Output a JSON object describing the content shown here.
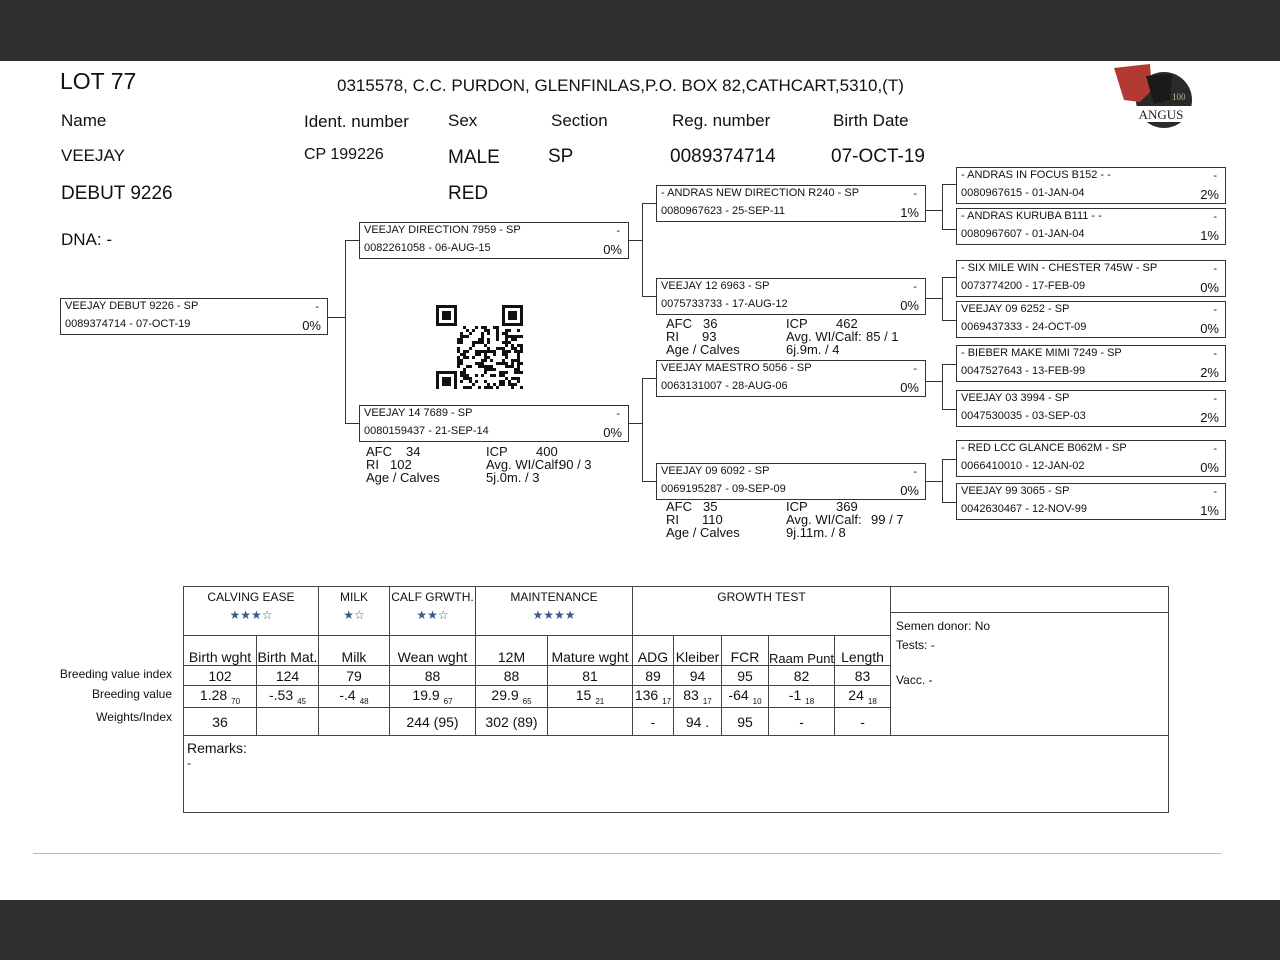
{
  "header": {
    "lot": "LOT 77",
    "breeder": "0315578, C.C. PURDON, GLENFINLAS,P.O. BOX 82,CATHCART,5310,(T)",
    "labels": {
      "name": "Name",
      "ident": "Ident. number",
      "sex": "Sex",
      "section": "Section",
      "reg": "Reg. number",
      "birth": "Birth Date"
    },
    "values": {
      "name1": "VEEJAY",
      "name2": "DEBUT 9226",
      "ident": "CP  199226",
      "sex": "MALE",
      "color": "RED",
      "section": "SP",
      "reg": "0089374714",
      "birth": "07-OCT-19"
    },
    "dna": "DNA: -",
    "logo_text": "ANGUS"
  },
  "pedigree": {
    "animal": {
      "name": "VEEJAY DEBUT 9226 - SP",
      "dash": "-",
      "reg": "0089374714 -  07-OCT-19",
      "pct": "0%"
    },
    "sire": {
      "name": "VEEJAY DIRECTION 7959 - SP",
      "dash": "-",
      "reg": "0082261058 - 06-AUG-15",
      "pct": "0%"
    },
    "dam": {
      "name": "VEEJAY 14 7689 - SP",
      "dash": "-",
      "reg": "0080159437 - 21-SEP-14",
      "pct": "0%",
      "stats": {
        "afc_l": "AFC",
        "afc": "34",
        "ri_l": "RI",
        "ri": "102",
        "age_l": "Age / Calves",
        "icp_l": "ICP",
        "icp": "400",
        "avg_l": "Avg. WI/Calf:",
        "avg": "90 / 3",
        "age": "5j.0m. / 3"
      }
    },
    "ss": {
      "name": "- ANDRAS NEW DIRECTION R240 - SP",
      "dash": "-",
      "reg": "0080967623 - 25-SEP-11",
      "pct": "1%"
    },
    "sd": {
      "name": "VEEJAY 12 6963 - SP",
      "dash": "-",
      "reg": "0075733733 - 17-AUG-12",
      "pct": "0%",
      "stats": {
        "afc_l": "AFC",
        "afc": "36",
        "ri_l": "RI",
        "ri": "93",
        "age_l": "Age / Calves",
        "icp_l": "ICP",
        "icp": "462",
        "avg_l": "Avg. WI/Calf:",
        "avg": "85 / 1",
        "age": "6j.9m. / 4"
      }
    },
    "ds": {
      "name": "VEEJAY MAESTRO 5056 - SP",
      "dash": "-",
      "reg": "0063131007 - 28-AUG-06",
      "pct": "0%"
    },
    "dd": {
      "name": "VEEJAY 09 6092 - SP",
      "dash": "-",
      "reg": "0069195287 - 09-SEP-09",
      "pct": "0%",
      "stats": {
        "afc_l": "AFC",
        "afc": "35",
        "ri_l": "RI",
        "ri": "110",
        "age_l": "Age / Calves",
        "icp_l": "ICP",
        "icp": "369",
        "avg_l": "Avg. WI/Calf:",
        "avg": "99 / 7",
        "age": "9j.11m. / 8"
      }
    },
    "ggp": [
      {
        "name": "- ANDRAS IN FOCUS B152 - -",
        "dash": "-",
        "reg": "0080967615 - 01-JAN-04",
        "pct": "2%"
      },
      {
        "name": "- ANDRAS KURUBA B111 - -",
        "dash": "-",
        "reg": "0080967607 - 01-JAN-04",
        "pct": "1%"
      },
      {
        "name": "- SIX MILE WIN - CHESTER 745W - SP",
        "dash": "-",
        "reg": "0073774200 - 17-FEB-09",
        "pct": "0%"
      },
      {
        "name": "VEEJAY 09 6252 - SP",
        "dash": "-",
        "reg": "0069437333 - 24-OCT-09",
        "pct": "0%"
      },
      {
        "name": "- BIEBER MAKE MIMI 7249 - SP",
        "dash": "-",
        "reg": "0047527643 - 13-FEB-99",
        "pct": "2%"
      },
      {
        "name": "VEEJAY 03 3994 - SP",
        "dash": "-",
        "reg": "0047530035 - 03-SEP-03",
        "pct": "2%"
      },
      {
        "name": "- RED LCC GLANCE B062M - SP",
        "dash": "-",
        "reg": "0066410010 - 12-JAN-02",
        "pct": "0%"
      },
      {
        "name": "VEEJAY 99 3065 - SP",
        "dash": "-",
        "reg": "0042630467 - 12-NOV-99",
        "pct": "1%"
      }
    ]
  },
  "table": {
    "groups": [
      {
        "label": "CALVING EASE",
        "stars": "★★★☆"
      },
      {
        "label": "MILK",
        "stars": "★☆"
      },
      {
        "label": "CALF GRWTH.",
        "stars": "★★☆"
      },
      {
        "label": "MAINTENANCE",
        "stars": "★★★★"
      },
      {
        "label": "GROWTH TEST",
        "stars": ""
      }
    ],
    "star_color": "#3a5a8c",
    "row_labels": [
      "Breeding value index",
      "Breeding value",
      "Weights/Index"
    ],
    "columns": [
      "Birth wght",
      "Birth Mat.",
      "Milk",
      "Wean wght",
      "12M",
      "Mature wght",
      "ADG",
      "Kleiber",
      "FCR",
      "Raam Punt",
      "Length"
    ],
    "index": [
      "102",
      "124",
      "79",
      "88",
      "88",
      "81",
      "89",
      "94",
      "95",
      "82",
      "83"
    ],
    "bv": [
      [
        "1.28",
        "70"
      ],
      [
        "-.53",
        "45"
      ],
      [
        "-.4",
        "48"
      ],
      [
        "19.9",
        "67"
      ],
      [
        "29.9",
        "65"
      ],
      [
        "15",
        "21"
      ],
      [
        "136",
        "17"
      ],
      [
        "83",
        "17"
      ],
      [
        "-64",
        "10"
      ],
      [
        "-1",
        "18"
      ],
      [
        "24",
        "18"
      ]
    ],
    "weights": [
      "36",
      "",
      "",
      "244  (95)",
      "302 (89)",
      "",
      "-",
      "94 .",
      "95",
      "-",
      "-"
    ],
    "side": {
      "semen": "Semen donor: No",
      "tests": "Tests: -",
      "vacc": "Vacc. -"
    },
    "remarks_label": "Remarks:",
    "remarks": "-"
  }
}
